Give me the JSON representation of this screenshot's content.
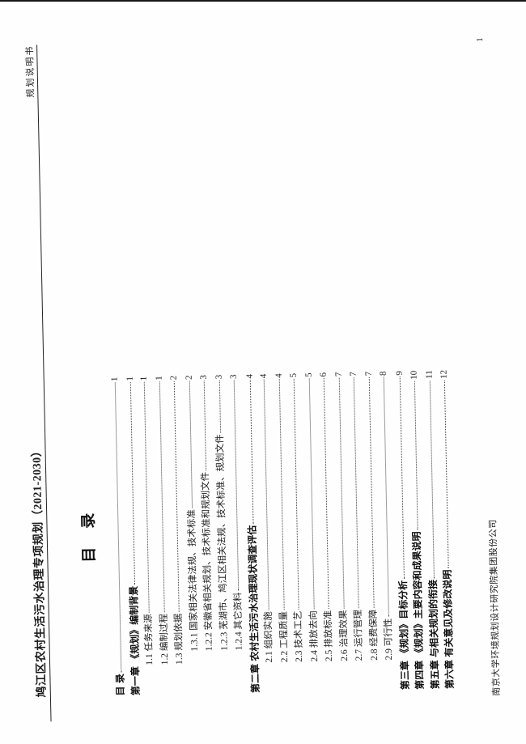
{
  "header": {
    "left_title": "鸠江区农村生活污水治理专项规划（2021-2030）",
    "right_title": "规划说明书"
  },
  "toc": {
    "heading": "目　录",
    "entries": [
      {
        "label": "目  录",
        "page": "1",
        "level": 1
      },
      {
        "label": "第一章 《规划》编制背景",
        "page": "1",
        "level": 1
      },
      {
        "label": "1.1 任务来源",
        "page": "1",
        "level": 2
      },
      {
        "label": "1.2 编制过程",
        "page": "1",
        "level": 2
      },
      {
        "label": "1.3 规划依据",
        "page": "2",
        "level": 2
      },
      {
        "label": "1.3.1 国家相关法律法规、技术标准",
        "page": "2",
        "level": 3
      },
      {
        "label": "1.2.2 安徽省相关规划、技术标准和规划文件",
        "page": "3",
        "level": 3
      },
      {
        "label": "1.2.3 芜湖市、鸠江区相关法规、技术标准、规划文件",
        "page": "3",
        "level": 3
      },
      {
        "label": "1.2.4 其它资料",
        "page": "3",
        "level": 3
      },
      {
        "label": "第二章 农村生活污水治理现状调查评估",
        "page": "4",
        "level": 1
      },
      {
        "label": "2.1 组织实施",
        "page": "4",
        "level": 2
      },
      {
        "label": "2.2 工程质量",
        "page": "4",
        "level": 2
      },
      {
        "label": "2.3 技术工艺",
        "page": "5",
        "level": 2
      },
      {
        "label": "2.4 排放去向",
        "page": "5",
        "level": 2
      },
      {
        "label": "2.5 排放标准",
        "page": "6",
        "level": 2
      },
      {
        "label": "2.6 治理效果",
        "page": "7",
        "level": 2
      },
      {
        "label": "2.7 运行管理",
        "page": "7",
        "level": 2
      },
      {
        "label": "2.8 经费保障",
        "page": "7",
        "level": 2
      },
      {
        "label": "2.9 可行性",
        "page": "8",
        "level": 2
      },
      {
        "label": "第三章 《规划》目标分析",
        "page": "9",
        "level": 1
      },
      {
        "label": "第四章 《规划》主要内容和成果说明",
        "page": "10",
        "level": 1
      },
      {
        "label": "第五章 与相关规划的衔接",
        "page": "11",
        "level": 1
      },
      {
        "label": "第六章 有关意见及修改说明",
        "page": "12",
        "level": 1
      }
    ]
  },
  "footer": {
    "company": "南京大学环境规划设计研究院集团股份公司",
    "page_number": "1"
  }
}
